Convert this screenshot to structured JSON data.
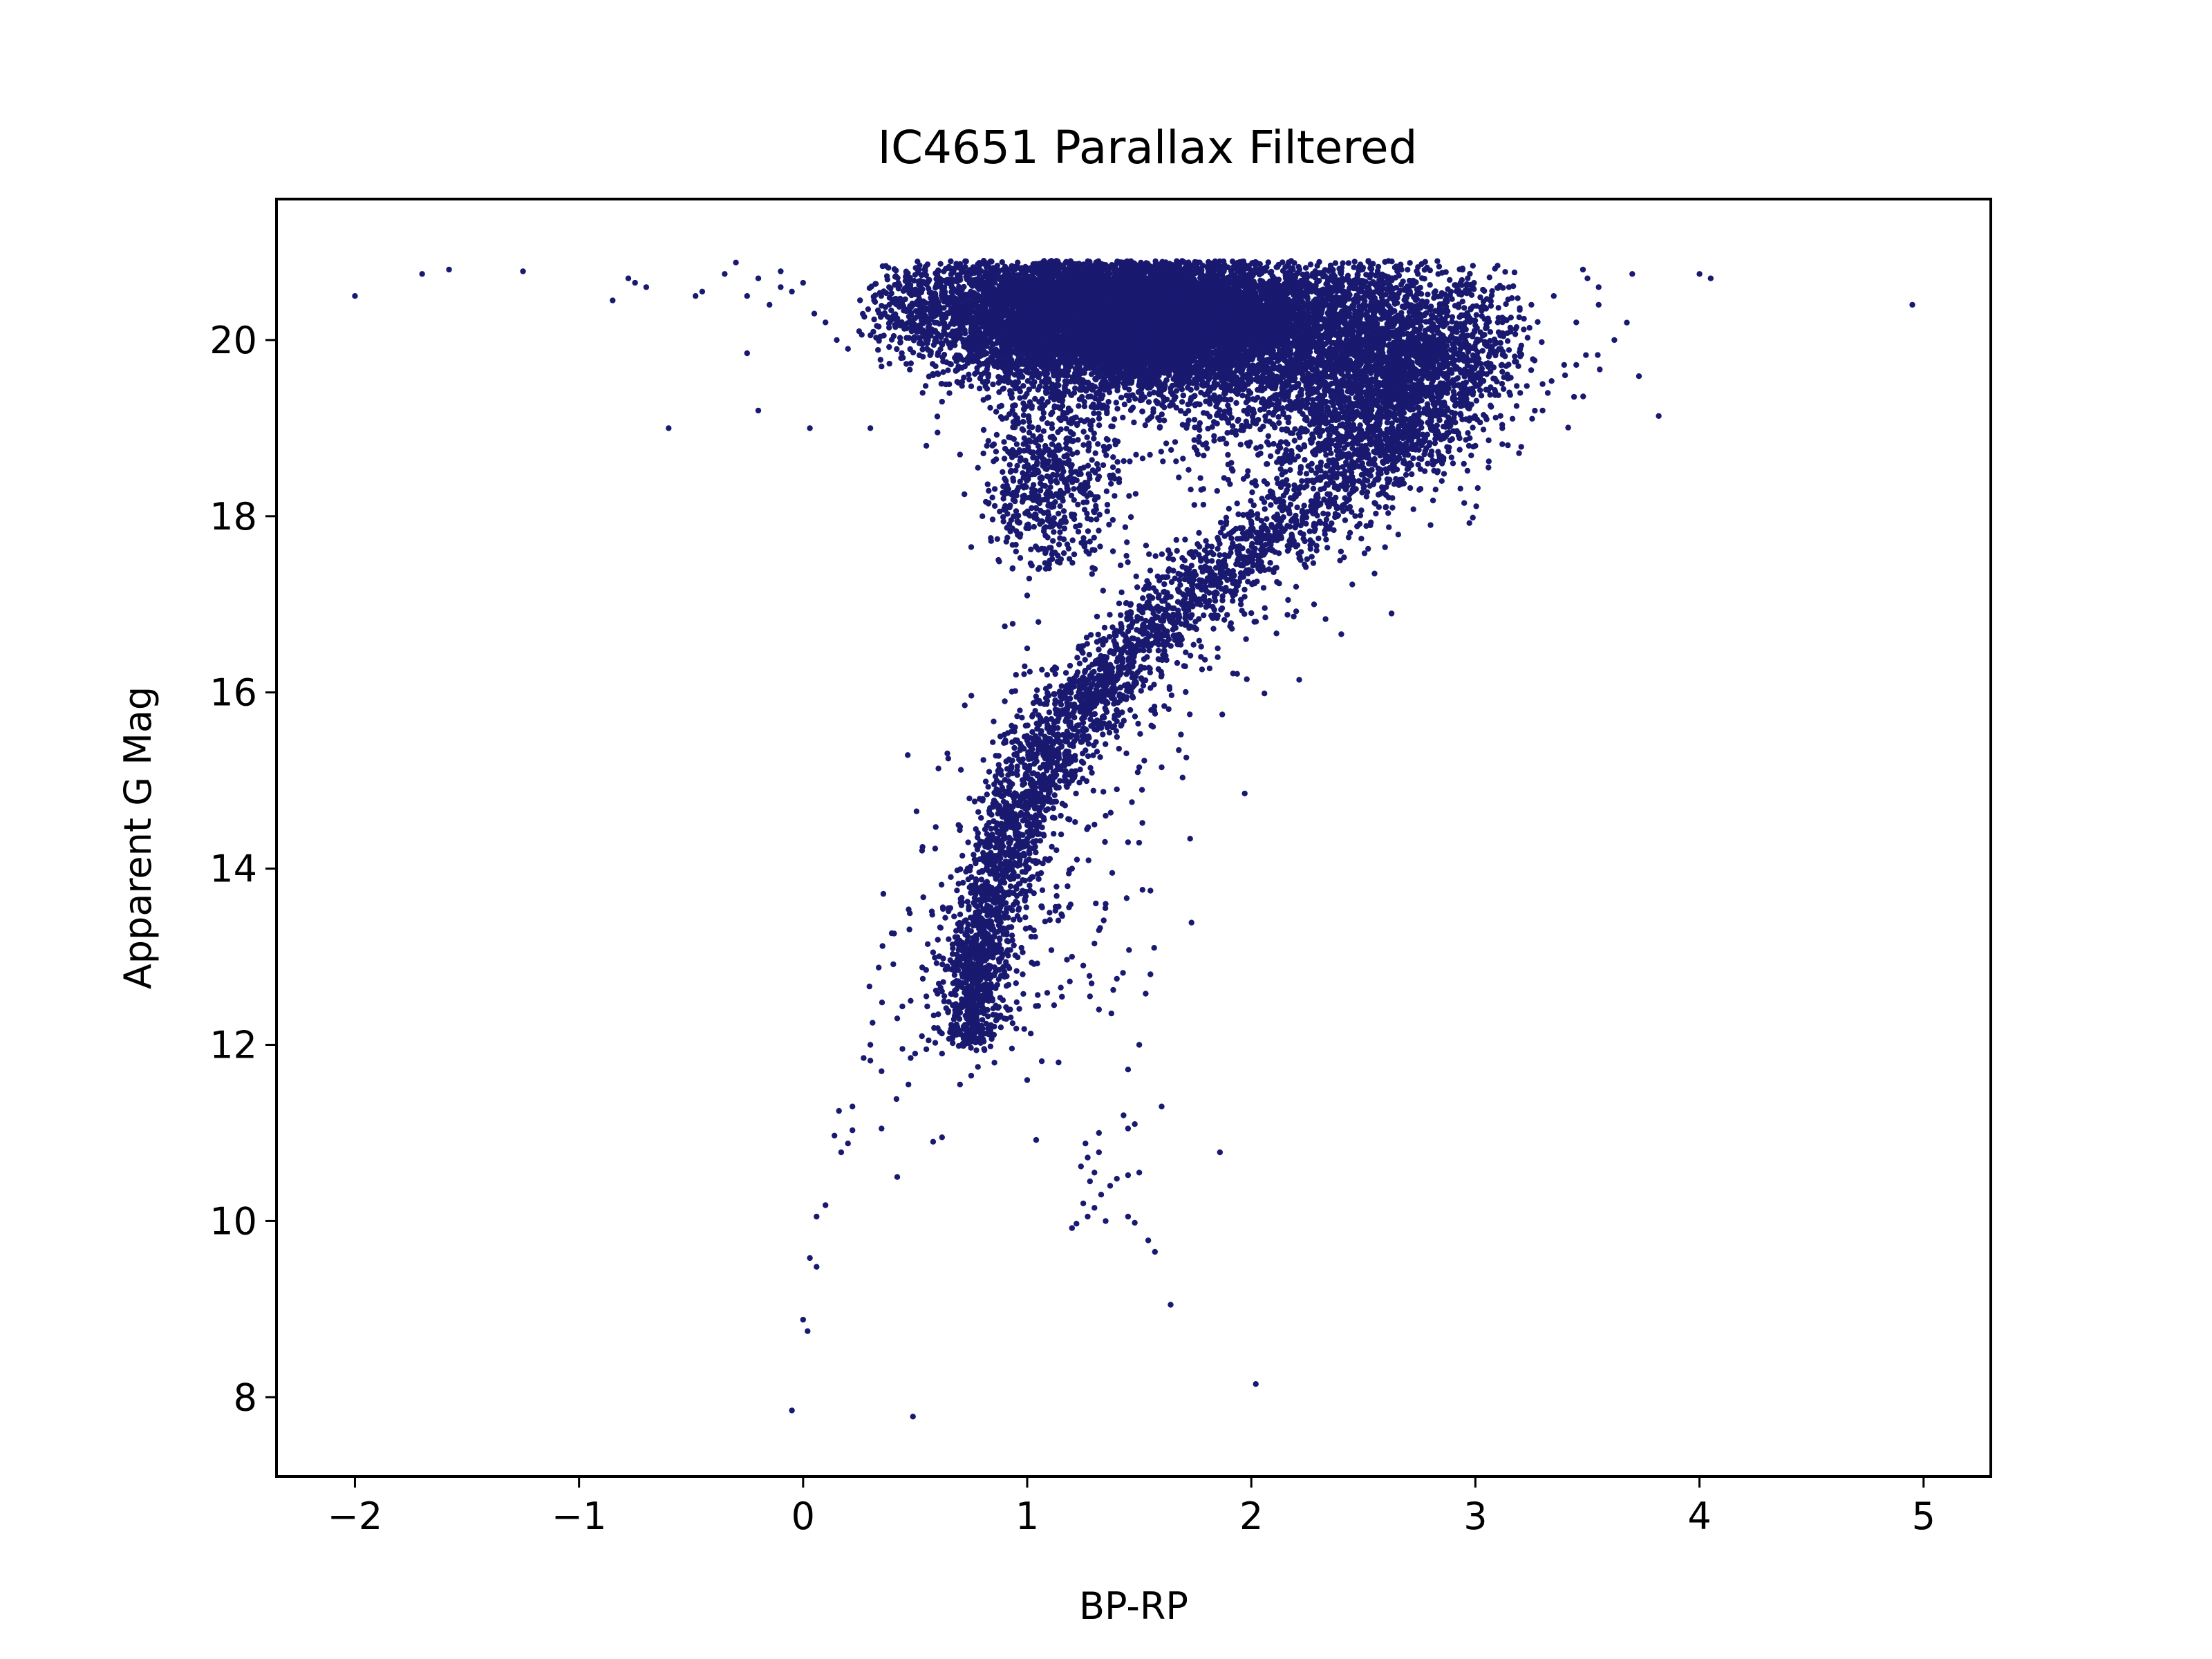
{
  "chart_data": {
    "type": "scatter",
    "title": "IC4651 Parallax Filtered",
    "xlabel": "BP-RP",
    "ylabel": "Apparent G Mag",
    "xlim": [
      -2.35,
      5.3
    ],
    "ylim": [
      21.6,
      7.1
    ],
    "y_inverted": true,
    "grid": false,
    "legend": "none",
    "marker_color": "#191970",
    "x_ticks": [
      -2,
      -1,
      0,
      1,
      2,
      3,
      4,
      5
    ],
    "x_tick_labels": [
      "−2",
      "−1",
      "0",
      "1",
      "2",
      "3",
      "4",
      "5"
    ],
    "y_ticks": [
      8,
      10,
      12,
      14,
      16,
      18,
      20
    ],
    "y_tick_labels": [
      "8",
      "10",
      "12",
      "14",
      "16",
      "18",
      "20"
    ],
    "points": [
      [
        -0.05,
        7.85
      ],
      [
        0.49,
        7.78
      ],
      [
        2.02,
        8.15
      ],
      [
        0.0,
        8.88
      ],
      [
        0.02,
        8.75
      ],
      [
        1.64,
        9.05
      ],
      [
        0.03,
        9.58
      ],
      [
        0.06,
        9.48
      ],
      [
        1.57,
        9.65
      ],
      [
        1.54,
        9.78
      ],
      [
        0.06,
        10.05
      ],
      [
        0.1,
        10.18
      ],
      [
        1.2,
        9.92
      ],
      [
        1.22,
        9.97
      ],
      [
        1.27,
        10.05
      ],
      [
        1.3,
        10.15
      ],
      [
        1.35,
        10.0
      ],
      [
        1.45,
        10.05
      ],
      [
        1.48,
        9.98
      ],
      [
        1.25,
        10.2
      ],
      [
        1.33,
        10.3
      ],
      [
        1.37,
        10.4
      ],
      [
        1.28,
        10.45
      ],
      [
        1.4,
        10.48
      ],
      [
        1.3,
        10.55
      ],
      [
        1.24,
        10.62
      ],
      [
        1.27,
        10.72
      ],
      [
        1.32,
        10.78
      ],
      [
        1.26,
        10.88
      ],
      [
        1.45,
        10.52
      ],
      [
        1.5,
        10.55
      ],
      [
        1.86,
        10.78
      ],
      [
        0.42,
        10.5
      ],
      [
        0.17,
        10.78
      ],
      [
        0.2,
        10.88
      ],
      [
        0.14,
        10.97
      ],
      [
        0.22,
        11.03
      ],
      [
        0.16,
        11.25
      ],
      [
        0.22,
        11.3
      ],
      [
        0.35,
        11.05
      ],
      [
        0.58,
        10.9
      ],
      [
        0.62,
        10.95
      ],
      [
        1.04,
        10.92
      ],
      [
        1.32,
        11.0
      ],
      [
        1.45,
        11.05
      ],
      [
        1.48,
        11.1
      ],
      [
        1.43,
        11.2
      ],
      [
        1.6,
        11.3
      ],
      [
        0.3,
        11.82
      ],
      [
        0.27,
        11.85
      ],
      [
        0.3,
        12.0
      ],
      [
        0.35,
        11.7
      ],
      [
        0.47,
        11.55
      ],
      [
        0.48,
        11.85
      ],
      [
        0.5,
        11.9
      ],
      [
        0.55,
        11.95
      ],
      [
        0.56,
        12.05
      ],
      [
        0.62,
        11.9
      ],
      [
        0.7,
        11.55
      ],
      [
        0.75,
        11.65
      ],
      [
        0.78,
        11.75
      ],
      [
        1.0,
        11.6
      ],
      [
        1.14,
        11.8
      ],
      [
        1.45,
        11.72
      ],
      [
        1.5,
        12.0
      ],
      [
        0.31,
        12.25
      ],
      [
        0.42,
        12.3
      ],
      [
        0.48,
        12.5
      ],
      [
        0.55,
        12.55
      ],
      [
        0.6,
        12.58
      ],
      [
        0.95,
        12.7
      ],
      [
        0.98,
        12.8
      ],
      [
        1.12,
        12.45
      ],
      [
        1.15,
        12.65
      ],
      [
        1.25,
        12.9
      ],
      [
        1.28,
        12.55
      ],
      [
        1.32,
        12.4
      ],
      [
        1.4,
        12.75
      ],
      [
        1.55,
        12.8
      ],
      [
        1.2,
        13.0
      ],
      [
        1.3,
        13.15
      ],
      [
        1.32,
        13.3
      ],
      [
        1.35,
        13.6
      ],
      [
        1.55,
        13.75
      ],
      [
        0.58,
        13.05
      ],
      [
        0.98,
        13.05
      ],
      [
        1.03,
        13.3
      ],
      [
        1.08,
        13.4
      ],
      [
        1.1,
        13.5
      ],
      [
        1.18,
        13.8
      ],
      [
        0.72,
        12.0
      ],
      [
        0.74,
        12.05
      ],
      [
        0.76,
        12.15
      ],
      [
        0.78,
        12.2
      ],
      [
        0.73,
        12.3
      ],
      [
        0.75,
        12.35
      ],
      [
        0.8,
        12.4
      ],
      [
        0.71,
        12.45
      ],
      [
        0.76,
        12.5
      ],
      [
        0.74,
        12.6
      ],
      [
        0.8,
        12.65
      ],
      [
        0.7,
        12.7
      ],
      [
        0.76,
        12.78
      ],
      [
        0.72,
        12.85
      ],
      [
        0.78,
        12.9
      ],
      [
        0.73,
        13.0
      ],
      [
        0.8,
        13.05
      ],
      [
        0.75,
        13.12
      ],
      [
        0.77,
        13.2
      ],
      [
        0.82,
        13.25
      ],
      [
        0.78,
        13.35
      ],
      [
        0.8,
        13.42
      ],
      [
        0.84,
        13.5
      ],
      [
        0.79,
        13.58
      ],
      [
        0.83,
        13.65
      ],
      [
        0.85,
        13.75
      ],
      [
        0.82,
        13.85
      ],
      [
        0.86,
        13.92
      ],
      [
        0.88,
        14.0
      ],
      [
        0.85,
        14.1
      ],
      [
        0.9,
        14.18
      ],
      [
        0.88,
        14.28
      ],
      [
        0.92,
        14.35
      ],
      [
        0.9,
        14.45
      ],
      [
        0.94,
        14.55
      ],
      [
        0.93,
        14.65
      ],
      [
        0.96,
        14.75
      ],
      [
        0.95,
        14.85
      ],
      [
        0.98,
        14.95
      ],
      [
        1.0,
        15.05
      ],
      [
        0.99,
        15.15
      ],
      [
        1.02,
        15.25
      ],
      [
        1.05,
        15.35
      ],
      [
        1.08,
        15.45
      ],
      [
        1.1,
        15.55
      ],
      [
        1.12,
        15.65
      ],
      [
        1.15,
        15.75
      ],
      [
        1.18,
        15.85
      ],
      [
        1.22,
        15.95
      ],
      [
        1.25,
        16.05
      ],
      [
        1.3,
        16.15
      ],
      [
        1.35,
        16.25
      ],
      [
        1.4,
        16.35
      ],
      [
        1.45,
        16.45
      ],
      [
        1.5,
        16.55
      ],
      [
        1.55,
        16.65
      ],
      [
        1.6,
        16.75
      ],
      [
        1.65,
        16.85
      ],
      [
        1.7,
        16.95
      ],
      [
        1.75,
        17.05
      ],
      [
        1.8,
        17.15
      ],
      [
        1.85,
        17.25
      ],
      [
        1.9,
        17.35
      ],
      [
        1.95,
        17.45
      ],
      [
        2.0,
        17.55
      ],
      [
        2.05,
        17.65
      ],
      [
        2.1,
        17.75
      ],
      [
        2.15,
        17.85
      ],
      [
        2.2,
        17.95
      ],
      [
        2.25,
        18.05
      ],
      [
        2.3,
        18.15
      ],
      [
        2.35,
        18.25
      ],
      [
        2.4,
        18.35
      ],
      [
        2.45,
        18.45
      ],
      [
        2.5,
        18.55
      ],
      [
        2.55,
        18.65
      ],
      [
        2.6,
        18.75
      ],
      [
        2.65,
        18.85
      ],
      [
        2.7,
        18.95
      ],
      [
        2.75,
        19.05
      ],
      [
        2.8,
        19.15
      ],
      [
        2.85,
        19.25
      ],
      [
        2.9,
        19.35
      ],
      [
        2.95,
        19.5
      ],
      [
        1.0,
        14.3
      ],
      [
        1.1,
        14.9
      ],
      [
        1.25,
        15.2
      ],
      [
        1.4,
        15.8
      ],
      [
        1.55,
        16.05
      ],
      [
        1.6,
        16.2
      ],
      [
        1.7,
        16.3
      ],
      [
        1.85,
        16.5
      ],
      [
        2.0,
        16.9
      ],
      [
        2.2,
        17.2
      ],
      [
        2.4,
        17.6
      ],
      [
        2.6,
        18.1
      ],
      [
        2.75,
        18.3
      ],
      [
        2.9,
        18.6
      ],
      [
        3.0,
        18.8
      ],
      [
        3.05,
        19.1
      ],
      [
        1.2,
        14.0
      ],
      [
        1.3,
        14.5
      ],
      [
        1.15,
        14.6
      ],
      [
        1.5,
        15.15
      ],
      [
        1.85,
        16.4
      ],
      [
        1.98,
        16.15
      ],
      [
        2.28,
        17.0
      ],
      [
        2.55,
        17.35
      ],
      [
        2.8,
        17.9
      ],
      [
        2.95,
        18.15
      ],
      [
        2.85,
        18.4
      ],
      [
        3.12,
        19.0
      ],
      [
        3.2,
        19.4
      ],
      [
        3.3,
        19.5
      ],
      [
        0.88,
        15.5
      ],
      [
        0.9,
        15.9
      ],
      [
        0.95,
        16.2
      ],
      [
        1.0,
        16.5
      ],
      [
        1.05,
        16.8
      ],
      [
        0.9,
        16.75
      ],
      [
        1.0,
        17.1
      ],
      [
        1.05,
        17.4
      ],
      [
        0.95,
        17.6
      ],
      [
        1.0,
        17.9
      ],
      [
        1.02,
        18.2
      ],
      [
        1.05,
        18.5
      ],
      [
        0.75,
        17.65
      ],
      [
        0.8,
        18.0
      ],
      [
        0.72,
        18.25
      ],
      [
        0.78,
        18.55
      ],
      [
        0.7,
        18.7
      ],
      [
        0.82,
        18.8
      ],
      [
        0.3,
        19.0
      ],
      [
        0.55,
        18.8
      ],
      [
        0.6,
        18.95
      ],
      [
        0.62,
        19.3
      ],
      [
        0.58,
        19.6
      ],
      [
        0.35,
        19.7
      ],
      [
        0.2,
        19.9
      ],
      [
        0.25,
        20.1
      ],
      [
        0.15,
        20.0
      ],
      [
        0.1,
        20.2
      ],
      [
        0.05,
        20.3
      ],
      [
        -0.05,
        20.55
      ],
      [
        -0.1,
        20.6
      ],
      [
        -0.15,
        20.4
      ],
      [
        -0.2,
        20.7
      ],
      [
        -0.25,
        20.5
      ],
      [
        -0.1,
        20.78
      ],
      [
        0.0,
        20.65
      ],
      [
        -0.6,
        19.0
      ],
      [
        -0.2,
        19.2
      ],
      [
        0.03,
        19.0
      ],
      [
        -0.25,
        19.85
      ],
      [
        -0.45,
        20.55
      ],
      [
        -0.35,
        20.75
      ],
      [
        -0.3,
        20.88
      ],
      [
        -0.7,
        20.6
      ],
      [
        -0.75,
        20.65
      ],
      [
        -0.85,
        20.45
      ],
      [
        -1.25,
        20.78
      ],
      [
        -1.58,
        20.8
      ],
      [
        -1.7,
        20.75
      ],
      [
        -2.0,
        20.5
      ],
      [
        -0.78,
        20.7
      ],
      [
        -0.48,
        20.5
      ],
      [
        3.5,
        20.7
      ],
      [
        3.55,
        20.6
      ],
      [
        3.48,
        20.8
      ],
      [
        3.62,
        20.0
      ],
      [
        3.7,
        20.75
      ],
      [
        3.55,
        20.4
      ],
      [
        3.45,
        20.2
      ],
      [
        3.35,
        20.5
      ],
      [
        3.25,
        20.4
      ],
      [
        3.15,
        20.6
      ],
      [
        4.0,
        20.75
      ],
      [
        4.05,
        20.7
      ],
      [
        4.95,
        20.4
      ],
      [
        3.3,
        19.2
      ],
      [
        3.4,
        19.6
      ],
      [
        3.2,
        19.9
      ],
      [
        3.1,
        20.2
      ],
      [
        1.6,
        15.15
      ],
      [
        1.4,
        14.9
      ],
      [
        1.45,
        14.3
      ],
      [
        1.35,
        14.6
      ],
      [
        1.2,
        15.0
      ]
    ],
    "dense_regions": [
      {
        "cx": 1.45,
        "cy": 20.15,
        "sx": 0.38,
        "sy": 0.38,
        "n": 6500,
        "xmin": 0.45,
        "xmax": 2.9,
        "ymin": 19.0,
        "ymax": 20.9
      },
      {
        "cx": 1.75,
        "cy": 20.35,
        "sx": 0.7,
        "sy": 0.35,
        "n": 4200,
        "xmin": 0.3,
        "xmax": 3.2,
        "ymin": 18.7,
        "ymax": 20.9
      },
      {
        "cx": 1.15,
        "cy": 20.45,
        "sx": 0.42,
        "sy": 0.3,
        "n": 1800,
        "xmin": 0.25,
        "xmax": 2.2,
        "ymin": 19.5,
        "ymax": 20.9
      },
      {
        "cx": 2.25,
        "cy": 19.6,
        "sx": 0.35,
        "sy": 0.55,
        "n": 1600,
        "xmin": 1.4,
        "xmax": 3.0,
        "ymin": 18.3,
        "ymax": 20.9
      },
      {
        "cx": 1.1,
        "cy": 18.4,
        "sx": 0.15,
        "sy": 0.6,
        "n": 700,
        "xmin": 0.8,
        "xmax": 1.6,
        "ymin": 17.4,
        "ymax": 19.5
      },
      {
        "cx": 2.6,
        "cy": 19.6,
        "sx": 0.2,
        "sy": 0.45,
        "n": 700,
        "xmin": 2.1,
        "xmax": 3.05,
        "ymin": 18.7,
        "ymax": 20.9
      }
    ],
    "sequence": {
      "knots": [
        [
          0.74,
          12.0
        ],
        [
          0.76,
          12.7
        ],
        [
          0.8,
          13.2
        ],
        [
          0.88,
          14.0
        ],
        [
          0.98,
          14.7
        ],
        [
          1.1,
          15.4
        ],
        [
          1.28,
          16.0
        ],
        [
          1.5,
          16.6
        ],
        [
          1.78,
          17.2
        ],
        [
          2.08,
          17.8
        ],
        [
          2.4,
          18.4
        ],
        [
          2.65,
          18.9
        ],
        [
          2.85,
          19.5
        ],
        [
          2.9,
          20.1
        ]
      ],
      "n": 3600,
      "spread_x": 0.06,
      "spread_x_growth": 0.03,
      "outlier_n": 550
    }
  }
}
